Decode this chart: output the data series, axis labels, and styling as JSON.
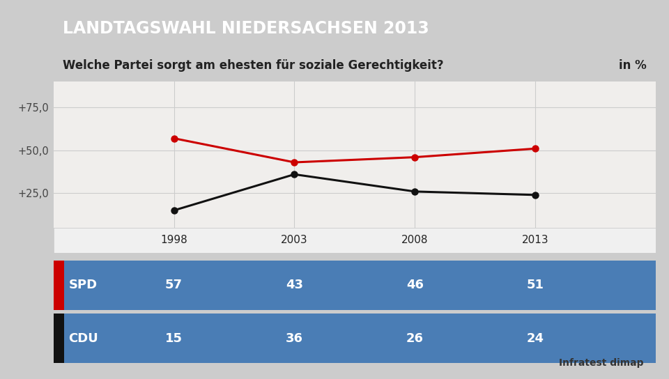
{
  "title": "LANDTAGSWAHL NIEDERSACHSEN 2013",
  "subtitle": "Welche Partei sorgt am ehesten für soziale Gerechtigkeit?",
  "subtitle_right": "in %",
  "years": [
    1998,
    2003,
    2008,
    2013
  ],
  "spd_values": [
    57,
    43,
    46,
    51
  ],
  "cdu_values": [
    15,
    36,
    26,
    24
  ],
  "spd_color": "#cc0000",
  "cdu_color": "#111111",
  "title_bg": "#1a3a6b",
  "subtitle_bg": "#ffffff",
  "table_bg": "#4a7db5",
  "table_header_bg": "#f0f0f0",
  "yticks": [
    25,
    50,
    75
  ],
  "ytick_labels": [
    "+25,0",
    "+50,0",
    "+75,0"
  ],
  "ylim": [
    5,
    90
  ],
  "source": "Infratest dimap",
  "background_color": "#cccccc",
  "plot_bg": "#f0eeec"
}
